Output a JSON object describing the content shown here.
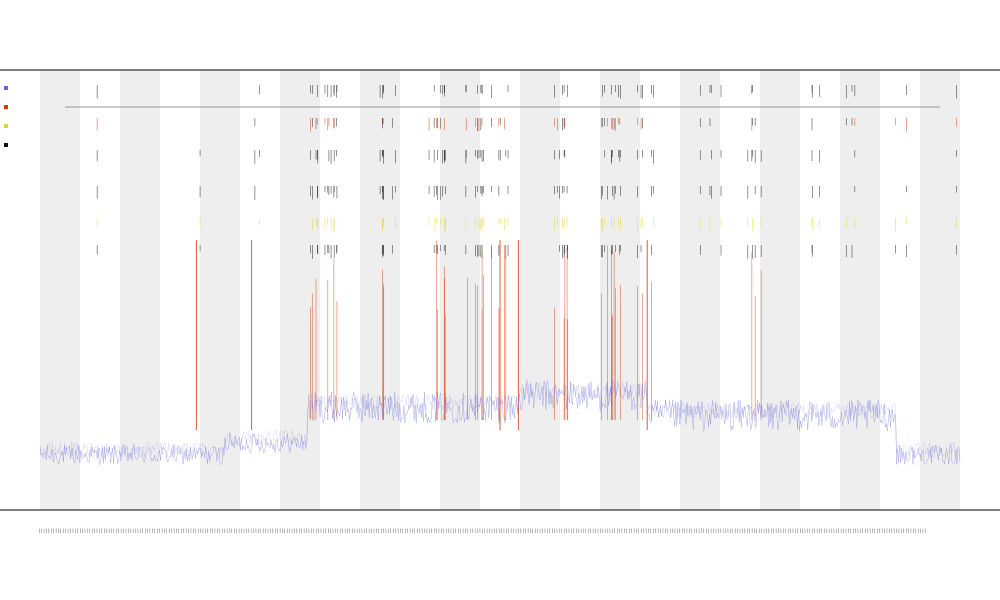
{
  "chart_data": {
    "type": "line",
    "title": "",
    "subtitle_1": "",
    "subtitle_2": "",
    "xlabel": "",
    "ylabel": "",
    "grid": false,
    "legend_placement": "top-left",
    "band_count": 23,
    "tick_label_count": 450,
    "colors": {
      "baseline": "#6666dd",
      "event_red": "#dd3300",
      "event_black": "#111111",
      "event_yellow": "#d8d830",
      "band": "#eeeeee",
      "axis": "#333333"
    },
    "series": [
      {
        "name": "",
        "color": "#6666dd",
        "role": "baseline",
        "segments": [
          {
            "x0": 0.0,
            "x1": 0.2,
            "y": 0.12
          },
          {
            "x0": 0.2,
            "x1": 0.29,
            "y": 0.15
          },
          {
            "x0": 0.29,
            "x1": 0.52,
            "y": 0.24
          },
          {
            "x0": 0.52,
            "x1": 0.66,
            "y": 0.27
          },
          {
            "x0": 0.66,
            "x1": 0.93,
            "y": 0.22
          },
          {
            "x0": 0.93,
            "x1": 1.0,
            "y": 0.12
          }
        ]
      },
      {
        "name": "",
        "color": "#dd3300",
        "role": "event"
      },
      {
        "name": "",
        "color": "#d8d830",
        "role": "event"
      },
      {
        "name": "",
        "color": "#111111",
        "role": "event"
      }
    ]
  }
}
